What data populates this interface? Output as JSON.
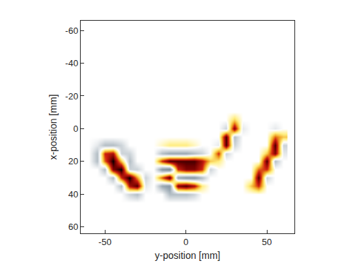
{
  "chart_data": {
    "type": "heatmap",
    "x_label": "y-position [mm]",
    "y_label": "x-position [mm]",
    "xlim": [
      -65,
      67
    ],
    "ylim": [
      64,
      -66
    ],
    "xticks": [
      -50,
      0,
      50
    ],
    "yticks": [
      -60,
      -40,
      -20,
      0,
      20,
      40,
      60
    ],
    "zlim": [
      -1,
      1
    ],
    "x": [
      -60,
      -55,
      -50,
      -45,
      -40,
      -35,
      -30,
      -25,
      -20,
      -15,
      -10,
      -5,
      0,
      5,
      10,
      15,
      20,
      25,
      30,
      35,
      40,
      45,
      50,
      55,
      60
    ],
    "y": [
      -60,
      -55,
      -50,
      -45,
      -40,
      -35,
      -30,
      -25,
      -20,
      -15,
      -10,
      -5,
      0,
      5,
      10,
      15,
      20,
      25,
      30,
      35,
      40,
      45,
      50,
      55,
      60
    ],
    "z": [
      [
        0,
        0,
        0,
        0,
        0,
        0,
        0,
        0,
        0,
        0,
        0,
        0,
        0,
        0,
        0,
        0,
        0,
        0,
        0,
        0,
        0,
        0,
        0,
        0,
        0
      ],
      [
        0,
        0,
        0,
        0,
        0,
        0,
        0,
        0,
        0,
        0,
        0,
        0,
        0,
        0,
        0,
        0,
        0,
        0,
        0,
        0,
        0,
        0,
        0,
        0,
        0
      ],
      [
        0,
        0,
        0,
        0,
        0,
        0,
        0,
        0,
        0,
        0,
        0,
        0,
        0,
        0,
        0,
        0,
        0,
        0,
        0,
        0,
        0,
        0,
        0,
        0,
        0
      ],
      [
        0,
        0,
        0,
        0,
        0,
        0,
        0,
        0,
        0,
        0,
        0,
        0,
        0,
        0,
        0,
        0,
        0,
        0,
        0,
        0,
        0,
        0,
        0,
        0,
        0
      ],
      [
        0,
        0,
        0,
        0,
        0,
        0,
        0,
        0,
        0,
        0,
        0,
        0,
        0,
        0,
        0,
        0,
        0,
        0,
        0,
        0,
        0,
        0,
        0,
        0,
        0
      ],
      [
        0,
        0,
        0,
        0,
        0,
        0,
        0,
        0,
        0,
        0,
        0,
        0,
        0,
        0,
        0,
        0,
        0,
        0,
        0,
        0,
        0,
        0,
        0,
        0,
        0
      ],
      [
        0,
        0,
        0,
        0,
        0,
        0,
        0,
        0,
        0,
        0,
        0,
        0,
        0,
        0,
        0,
        0,
        0,
        0,
        0,
        0,
        0,
        0,
        0,
        0,
        0
      ],
      [
        0,
        0,
        0,
        0,
        0,
        0,
        0,
        0,
        0,
        0,
        0,
        0,
        0,
        0,
        0,
        0,
        0,
        0,
        0,
        0,
        0,
        0,
        0,
        0,
        0
      ],
      [
        0,
        0,
        0,
        0,
        0,
        0,
        0,
        0,
        0,
        0,
        0,
        0,
        0,
        0,
        0,
        0,
        0,
        0,
        0,
        0,
        0,
        0,
        0,
        0,
        0
      ],
      [
        0,
        0,
        0,
        0,
        0,
        0,
        0,
        0,
        0,
        0,
        0,
        0,
        0,
        0,
        0,
        0,
        0,
        0,
        0,
        0,
        0,
        0,
        0,
        0,
        0
      ],
      [
        0,
        0,
        0,
        0,
        0,
        0,
        0,
        0,
        0,
        0,
        0,
        0,
        0,
        0,
        0,
        0,
        0,
        0,
        0,
        0,
        0,
        0,
        0,
        0,
        0
      ],
      [
        0,
        0,
        0,
        0,
        0,
        0,
        0,
        0,
        0,
        0,
        0,
        0,
        0,
        0,
        0,
        0,
        0,
        0,
        0.3,
        0,
        0,
        0,
        0,
        0,
        0
      ],
      [
        0,
        0,
        0,
        0,
        0,
        0,
        0,
        0,
        0,
        0,
        0,
        0,
        0,
        0,
        0,
        0,
        0,
        -0.2,
        0.8,
        -0.1,
        0,
        0,
        0,
        -0.1,
        0
      ],
      [
        0,
        0,
        0,
        0,
        0,
        0,
        0,
        0,
        0,
        0,
        0,
        0,
        0,
        0,
        0,
        0,
        0,
        0.9,
        -0.3,
        0,
        0,
        0,
        0,
        0.5,
        0.3
      ],
      [
        0,
        -0.1,
        -0.3,
        -0.3,
        -0.2,
        0,
        0,
        0,
        0,
        0.1,
        0.2,
        0.2,
        0.2,
        0.1,
        0,
        0,
        -0.1,
        0.9,
        -0.2,
        0,
        0,
        0,
        0,
        0.9,
        -0.2
      ],
      [
        0,
        -0.3,
        0.6,
        0.7,
        -0.2,
        -0.2,
        0,
        0,
        0,
        -0.3,
        -0.4,
        -0.4,
        -0.4,
        -0.3,
        -0.2,
        0,
        0.6,
        -0.2,
        0,
        0,
        0,
        0,
        0.3,
        0.8,
        -0.1
      ],
      [
        0,
        -0.3,
        0.5,
        1,
        0.3,
        -0.3,
        0,
        0,
        0,
        0.6,
        0.9,
        0.9,
        0.9,
        0.9,
        0.7,
        0.3,
        0.2,
        0,
        0,
        0,
        0,
        0,
        0.9,
        -0.3,
        0
      ],
      [
        0,
        0,
        -0.3,
        0.8,
        1,
        -0.2,
        -0.2,
        0,
        0,
        -0.5,
        -0.6,
        0.6,
        0.8,
        0.8,
        0.6,
        -0.2,
        0,
        0,
        0,
        0,
        0,
        0.5,
        0.6,
        0,
        0
      ],
      [
        0,
        0,
        0,
        -0.3,
        0.6,
        1,
        0.4,
        -0.2,
        0,
        0.5,
        0.9,
        -0.4,
        -0.5,
        -0.5,
        -0.3,
        0,
        0,
        0,
        0,
        0,
        0,
        0.9,
        -0.2,
        0,
        0
      ],
      [
        0,
        0,
        0,
        0,
        -0.3,
        0.7,
        0.9,
        -0.1,
        0,
        -0.4,
        -0.5,
        0.8,
        0.9,
        0.7,
        0.2,
        0,
        0,
        0,
        0,
        0,
        0.3,
        0.6,
        0,
        0,
        0
      ],
      [
        0,
        0,
        0,
        0,
        0,
        -0.2,
        -0.3,
        0,
        0,
        0,
        -0.3,
        -0.3,
        -0.3,
        -0.2,
        0,
        0,
        0,
        0,
        0,
        0,
        0,
        0,
        0,
        0,
        0
      ],
      [
        0,
        0,
        0,
        0,
        0,
        0,
        0,
        0,
        0,
        0,
        0,
        0,
        0,
        0,
        0,
        0,
        0,
        0,
        0,
        0,
        0,
        0,
        0,
        0,
        0
      ],
      [
        0,
        0,
        0,
        0,
        0,
        0,
        0,
        0,
        0,
        0,
        0,
        0,
        0,
        0,
        0,
        0,
        0,
        0,
        0,
        0,
        0,
        0,
        0,
        0,
        0
      ],
      [
        0,
        0,
        0,
        0,
        0,
        0,
        0,
        0,
        0,
        0,
        0,
        0,
        0,
        0,
        0,
        0,
        0,
        0,
        0,
        0,
        0,
        0,
        0,
        0,
        0
      ],
      [
        0,
        0,
        0,
        0,
        0,
        0,
        0,
        0,
        0,
        0,
        0,
        0,
        0,
        0,
        0,
        0,
        0,
        0,
        0,
        0,
        0,
        0,
        0,
        0,
        0
      ]
    ]
  }
}
